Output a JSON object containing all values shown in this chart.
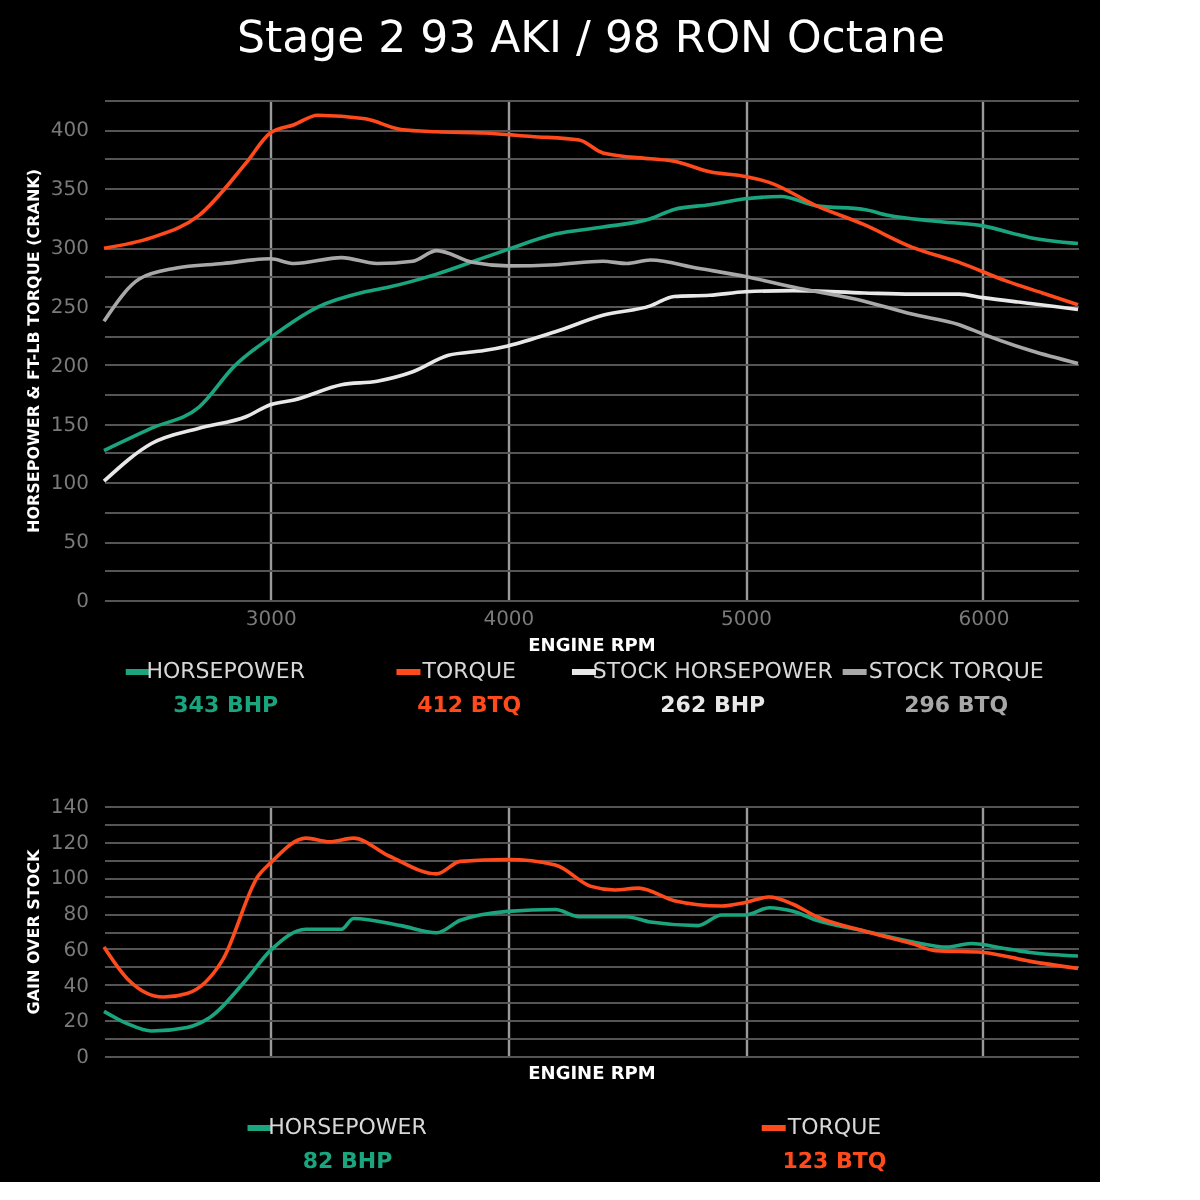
{
  "chart_data": [
    {
      "type": "line",
      "title": "Stage 2 93 AKI / 98 RON Octane",
      "xlabel": "ENGINE RPM",
      "ylabel": "HORSEPOWER & FT-LB TORQUE (CRANK)",
      "xlim": [
        2300,
        6400
      ],
      "xticks": [
        3000,
        4000,
        5000,
        6000
      ],
      "ylim": [
        0,
        425
      ],
      "yticks": [
        0,
        {
          "value": 25,
          "label": null
        },
        50,
        {
          "value": 75,
          "label": null
        },
        100,
        {
          "value": 125,
          "label": null
        },
        150,
        {
          "value": 175,
          "label": null
        },
        200,
        {
          "value": 225,
          "label": null
        },
        250,
        {
          "value": 275,
          "label": null
        },
        300,
        {
          "value": 325,
          "label": null
        },
        350,
        {
          "value": 375,
          "label": null
        },
        400,
        {
          "value": 425,
          "label": null
        }
      ],
      "grid": true,
      "legend": "bottom",
      "marker": "none",
      "line_style": "solid",
      "annotations": [
        "343 BHP",
        "412 BTQ",
        "262 BHP",
        "296 BTQ"
      ],
      "series": [
        {
          "name": "HORSEPOWER",
          "color": "#1aa57f",
          "x": [
            2300,
            2500,
            2700,
            2850,
            3000,
            3200,
            3400,
            3500,
            3700,
            3900,
            4000,
            4200,
            4400,
            4600,
            4700,
            4850,
            5000,
            5150,
            5300,
            5500,
            5600,
            5800,
            6000,
            6200,
            6400
          ],
          "values": [
            127,
            146,
            164,
            199,
            223,
            249,
            262,
            266,
            277,
            291,
            298,
            311,
            317,
            324,
            332,
            336,
            341,
            343,
            335,
            332,
            327,
            322,
            318,
            308,
            303
          ]
        },
        {
          "name": "TORQUE",
          "color": "#ff4a1c",
          "x": [
            2300,
            2500,
            2700,
            2900,
            3000,
            3100,
            3200,
            3400,
            3550,
            3700,
            3900,
            4100,
            4300,
            4400,
            4600,
            4700,
            4850,
            5000,
            5100,
            5300,
            5500,
            5700,
            5900,
            6100,
            6250,
            6400
          ],
          "values": [
            299,
            308,
            327,
            372,
            397,
            404,
            412,
            409,
            400,
            398,
            397,
            394,
            391,
            380,
            375,
            373,
            364,
            360,
            355,
            335,
            319,
            300,
            287,
            271,
            261,
            251
          ]
        },
        {
          "name": "STOCK HORSEPOWER",
          "color": "#e8e8e8",
          "x": [
            2300,
            2500,
            2700,
            2900,
            3000,
            3100,
            3300,
            3450,
            3600,
            3750,
            3900,
            4000,
            4200,
            4400,
            4600,
            4700,
            4850,
            5000,
            5200,
            5500,
            5700,
            5900,
            6000,
            6200,
            6400
          ],
          "values": [
            101,
            133,
            146,
            156,
            166,
            170,
            183,
            186,
            194,
            208,
            212,
            216,
            228,
            242,
            250,
            258,
            259,
            262,
            263,
            261,
            260,
            260,
            257,
            252,
            247
          ]
        },
        {
          "name": "STOCK TORQUE",
          "color": "#a8a8a8",
          "x": [
            2300,
            2450,
            2600,
            2800,
            3000,
            3100,
            3300,
            3450,
            3600,
            3700,
            3850,
            4000,
            4200,
            4400,
            4500,
            4600,
            4800,
            5000,
            5200,
            5500,
            5700,
            5900,
            6000,
            6200,
            6400
          ],
          "values": [
            237,
            273,
            282,
            286,
            290,
            286,
            291,
            286,
            288,
            297,
            287,
            284,
            285,
            288,
            286,
            289,
            282,
            275,
            266,
            254,
            243,
            234,
            226,
            212,
            201
          ]
        }
      ]
    },
    {
      "type": "line",
      "xlabel": "ENGINE RPM",
      "ylabel": "GAIN OVER STOCK",
      "xlim": [
        2300,
        6400
      ],
      "xticks": [
        {
          "value": 3000,
          "label": null
        },
        {
          "value": 4000,
          "label": null
        },
        {
          "value": 5000,
          "label": null
        },
        {
          "value": 6000,
          "label": null
        }
      ],
      "ylim": [
        0,
        140
      ],
      "yticks": [
        0,
        {
          "value": 10,
          "label": null
        },
        20,
        {
          "value": 30,
          "label": null
        },
        40,
        {
          "value": 50,
          "label": null
        },
        60,
        {
          "value": 70,
          "label": null
        },
        80,
        {
          "value": 90,
          "label": null
        },
        100,
        {
          "value": 110,
          "label": null
        },
        120,
        {
          "value": 130,
          "label": null
        },
        140
      ],
      "tick_labels": "y",
      "grid": true,
      "legend": "bottom",
      "marker": "none",
      "line_style": "solid",
      "annotations": [
        "82 BHP",
        "123 BTQ"
      ],
      "series": [
        {
          "name": "HORSEPOWER",
          "color": "#1aa57f",
          "x": [
            2300,
            2400,
            2500,
            2650,
            2750,
            2900,
            3000,
            3150,
            3300,
            3350,
            3550,
            3700,
            3800,
            4000,
            4200,
            4300,
            4500,
            4600,
            4800,
            4900,
            5000,
            5100,
            5200,
            5300,
            5500,
            5700,
            5850,
            5950,
            6100,
            6200,
            6400
          ],
          "values": [
            25,
            18,
            14,
            16,
            22,
            43,
            59,
            71,
            71,
            77,
            73,
            69,
            76,
            81,
            82,
            78,
            78,
            75,
            73,
            79,
            79,
            83,
            81,
            76,
            70,
            64,
            61,
            63,
            60,
            58,
            56
          ]
        },
        {
          "name": "TORQUE",
          "color": "#ff4a1c",
          "x": [
            2300,
            2400,
            2550,
            2650,
            2800,
            2950,
            3000,
            3150,
            3250,
            3350,
            3500,
            3700,
            3800,
            4000,
            4200,
            4350,
            4450,
            4550,
            4700,
            4900,
            5000,
            5100,
            5200,
            5300,
            5500,
            5700,
            5800,
            6000,
            6200,
            6400
          ],
          "values": [
            61,
            43,
            33,
            35,
            54,
            101,
            108,
            122,
            120,
            122,
            112,
            102,
            109,
            110,
            107,
            95,
            93,
            94,
            87,
            84,
            86,
            89,
            85,
            78,
            70,
            63,
            59,
            58,
            53,
            49
          ]
        }
      ]
    }
  ]
}
